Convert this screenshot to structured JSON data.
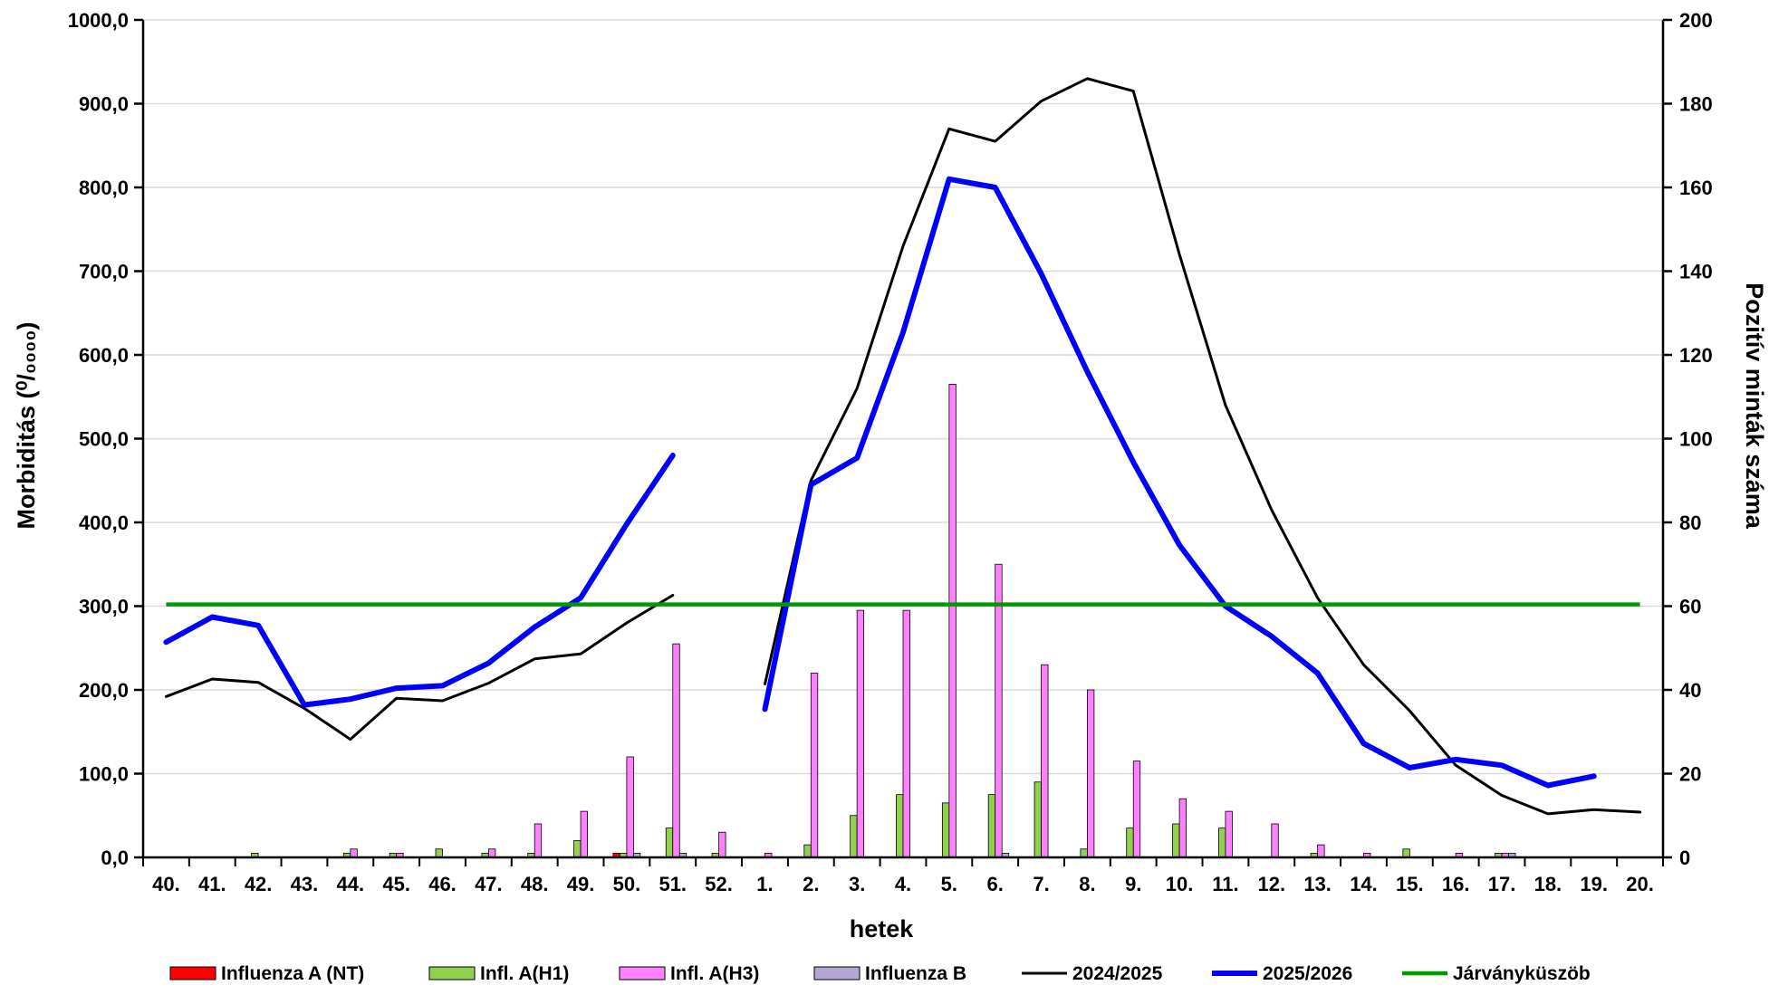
{
  "chart_data": {
    "type": "bar+line",
    "title": "",
    "xlabel": "hetek",
    "ylabel_left_text": "Morbiditás (",
    "ylabel_left_unit": "⁰/₀₀₀₀",
    "ylabel_left_close": ")",
    "ylabel_right": "Pozitív minták száma",
    "y_left_lim": [
      0,
      1000
    ],
    "y_right_lim": [
      0,
      200
    ],
    "y_left_ticks": [
      "0,0",
      "100,0",
      "200,0",
      "300,0",
      "400,0",
      "500,0",
      "600,0",
      "700,0",
      "800,0",
      "900,0",
      "1000,0"
    ],
    "y_right_ticks": [
      "0",
      "20",
      "40",
      "60",
      "80",
      "100",
      "120",
      "140",
      "160",
      "180",
      "200"
    ],
    "grid": true,
    "legend_position": "bottom",
    "categories": [
      "40.",
      "41.",
      "42.",
      "43.",
      "44.",
      "45.",
      "46.",
      "47.",
      "48.",
      "49.",
      "50.",
      "51.",
      "52.",
      "1.",
      "2.",
      "3.",
      "4.",
      "5.",
      "6.",
      "7.",
      "8.",
      "9.",
      "10.",
      "11.",
      "12.",
      "13.",
      "14.",
      "15.",
      "16.",
      "17.",
      "18.",
      "19.",
      "20."
    ],
    "bar_series": [
      {
        "name": "Influenza A (NT)",
        "color": "#ff0000",
        "axis": "right",
        "values": [
          0,
          0,
          0,
          0,
          0,
          0,
          0,
          0,
          0,
          0,
          1,
          0,
          0,
          0,
          0,
          0,
          0,
          0,
          0,
          0,
          0,
          0,
          0,
          0,
          0,
          0,
          0,
          0,
          0,
          0,
          0,
          0,
          0
        ]
      },
      {
        "name": "Infl. A(H1)",
        "color": "#92d050",
        "axis": "right",
        "values": [
          0,
          0,
          1,
          0,
          1,
          1,
          2,
          1,
          1,
          4,
          1,
          7,
          1,
          0,
          3,
          10,
          15,
          13,
          15,
          18,
          2,
          7,
          8,
          7,
          0,
          1,
          0,
          2,
          0,
          1,
          0,
          0,
          0
        ]
      },
      {
        "name": "Infl. A(H3)",
        "color": "#ff80ff",
        "axis": "right",
        "values": [
          0,
          0,
          0,
          0,
          2,
          1,
          0,
          2,
          8,
          11,
          24,
          51,
          6,
          1,
          44,
          59,
          59,
          113,
          70,
          46,
          40,
          23,
          14,
          11,
          8,
          3,
          1,
          0,
          1,
          1,
          0,
          0,
          0
        ]
      },
      {
        "name": "Influenza B",
        "color": "#b4a7d6",
        "axis": "right",
        "values": [
          0,
          0,
          0,
          0,
          0,
          0,
          0,
          0,
          0,
          0,
          1,
          1,
          0,
          0,
          0,
          0,
          0,
          0,
          1,
          0,
          0,
          0,
          0,
          0,
          0,
          0,
          0,
          0,
          0,
          1,
          0,
          0,
          0
        ]
      }
    ],
    "line_series": [
      {
        "name": "2024/2025",
        "color": "#000000",
        "axis": "left",
        "segments": [
          {
            "start": 0,
            "values": [
              192,
              213,
              209,
              178,
              141,
              190,
              187,
              208,
              237,
              243,
              280,
              313
            ]
          },
          {
            "start": 13,
            "values": [
              207,
              450,
              560,
              730,
              870,
              855,
              903,
              930,
              915,
              720,
              540,
              415,
              310,
              230,
              175,
              110,
              74,
              52,
              57,
              54
            ]
          }
        ]
      },
      {
        "name": "2025/2026",
        "color": "#0000ff",
        "axis": "left",
        "segments": [
          {
            "start": 0,
            "values": [
              257,
              287,
              277,
              182,
              189,
              202,
              205,
              232,
              275,
              310,
              398,
              480
            ]
          },
          {
            "start": 13,
            "values": [
              177,
              445,
              477,
              627,
              810,
              800,
              697,
              580,
              472,
              373,
              300,
              264,
              220,
              136,
              107,
              117,
              110,
              86,
              97
            ]
          }
        ]
      },
      {
        "name": "Járványküszöb",
        "color": "#009900",
        "axis": "left",
        "constant": 302
      }
    ],
    "legend": [
      {
        "name": "Influenza A (NT)",
        "kind": "bar",
        "color": "#ff0000"
      },
      {
        "name": "Infl. A(H1)",
        "kind": "bar",
        "color": "#92d050"
      },
      {
        "name": "Infl. A(H3)",
        "kind": "bar",
        "color": "#ff80ff"
      },
      {
        "name": "Influenza B",
        "kind": "bar",
        "color": "#b4a7d6"
      },
      {
        "name": "2024/2025",
        "kind": "line",
        "color": "#000000"
      },
      {
        "name": "2025/2026",
        "kind": "line",
        "color": "#0000ff"
      },
      {
        "name": "Járványküszöb",
        "kind": "line",
        "color": "#009900"
      }
    ]
  }
}
